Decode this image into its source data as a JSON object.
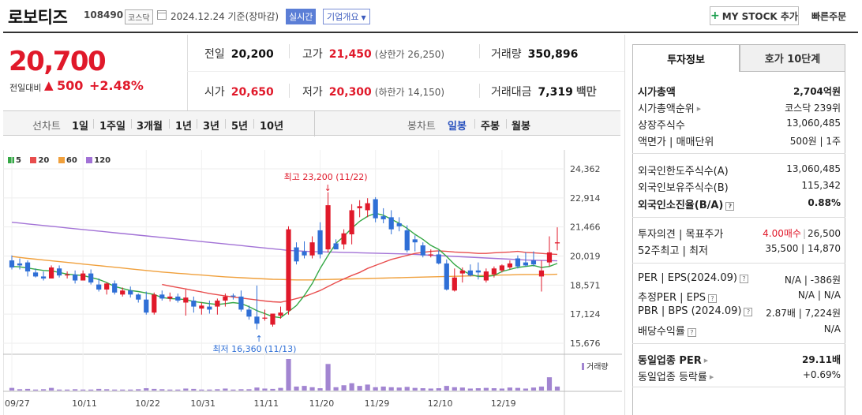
{
  "header": {
    "name": "로보티즈",
    "code": "108490",
    "market": "코스닥",
    "date": "2024.12.24  기준(장마감)",
    "realtime": "실시간",
    "company_info": "기업개요",
    "mystock": "MY STOCK 추가",
    "quick_order": "빠른주문"
  },
  "quote": {
    "price": "20,700",
    "change_label": "전일대비",
    "change": "500",
    "change_pct": "+2.48%",
    "prev_close_label": "전일",
    "prev_close": "20,200",
    "high_label": "고가",
    "high": "21,450",
    "upper_limit": "(상한가 26,250)",
    "volume_label": "거래량",
    "volume": "350,896",
    "open_label": "시가",
    "open": "20,650",
    "low_label": "저가",
    "low": "20,300",
    "lower_limit": "(하한가 14,150)",
    "amount_label": "거래대금",
    "amount": "7,319",
    "amount_unit": "백만"
  },
  "tabs": {
    "line_label": "선차트",
    "line_periods": [
      "1일",
      "1주일",
      "3개월",
      "1년",
      "3년",
      "5년",
      "10년"
    ],
    "candle_label": "봉차트",
    "candle_periods": [
      "일봉",
      "주봉",
      "월봉"
    ],
    "selected": "일봉"
  },
  "chart_data": {
    "type": "candlestick",
    "legend": [
      "5",
      "20",
      "60",
      "120"
    ],
    "colors": {
      "ma5": "#35a845",
      "ma20": "#e84d4d",
      "ma60": "#f0a03c",
      "ma120": "#a272d6",
      "up": "#e0192a",
      "down": "#2f6fd6",
      "volume": "#a285d1"
    },
    "y_ticks": [
      "24,362",
      "22,914",
      "21,466",
      "20,019",
      "18,571",
      "17,124",
      "15,676"
    ],
    "ylim": [
      15676,
      24362
    ],
    "x_ticks": [
      "09/27",
      "10/11",
      "10/22",
      "10/31",
      "11/11",
      "11/20",
      "11/29",
      "12/10",
      "12/19"
    ],
    "max_annotation": "최고 23,200 (11/22)",
    "min_annotation": "최저 16,360 (11/13)",
    "volume_label": "거래량",
    "candles": [
      {
        "o": 19800,
        "h": 20050,
        "l": 19350,
        "c": 19450
      },
      {
        "o": 19650,
        "h": 19900,
        "l": 19350,
        "c": 19550
      },
      {
        "o": 19700,
        "h": 19800,
        "l": 19000,
        "c": 19250
      },
      {
        "o": 19200,
        "h": 19400,
        "l": 18950,
        "c": 19000
      },
      {
        "o": 19000,
        "h": 19250,
        "l": 18800,
        "c": 18900
      },
      {
        "o": 18900,
        "h": 19550,
        "l": 18900,
        "c": 19450
      },
      {
        "o": 19400,
        "h": 19550,
        "l": 18950,
        "c": 19050
      },
      {
        "o": 19050,
        "h": 19250,
        "l": 18900,
        "c": 19100
      },
      {
        "o": 19100,
        "h": 19300,
        "l": 18650,
        "c": 18800
      },
      {
        "o": 18800,
        "h": 19300,
        "l": 18800,
        "c": 19150
      },
      {
        "o": 19150,
        "h": 19350,
        "l": 18600,
        "c": 18700
      },
      {
        "o": 18600,
        "h": 18900,
        "l": 18250,
        "c": 18350
      },
      {
        "o": 18350,
        "h": 18700,
        "l": 18100,
        "c": 18650
      },
      {
        "o": 18650,
        "h": 18800,
        "l": 18100,
        "c": 18200
      },
      {
        "o": 18100,
        "h": 18450,
        "l": 18000,
        "c": 18300
      },
      {
        "o": 18300,
        "h": 18500,
        "l": 17950,
        "c": 18100
      },
      {
        "o": 18100,
        "h": 18150,
        "l": 17700,
        "c": 17850
      },
      {
        "o": 17850,
        "h": 18250,
        "l": 17100,
        "c": 17200
      },
      {
        "o": 17200,
        "h": 18200,
        "l": 17100,
        "c": 18100
      },
      {
        "o": 18100,
        "h": 18300,
        "l": 17800,
        "c": 17900
      },
      {
        "o": 17900,
        "h": 18200,
        "l": 17750,
        "c": 18000
      },
      {
        "o": 18000,
        "h": 18150,
        "l": 17700,
        "c": 17800
      },
      {
        "o": 17700,
        "h": 18350,
        "l": 17050,
        "c": 17950
      },
      {
        "o": 17800,
        "h": 18000,
        "l": 17200,
        "c": 17500
      },
      {
        "o": 17400,
        "h": 17700,
        "l": 17100,
        "c": 17550
      },
      {
        "o": 17500,
        "h": 17800,
        "l": 17150,
        "c": 17350
      },
      {
        "o": 17500,
        "h": 17900,
        "l": 17100,
        "c": 17800
      },
      {
        "o": 17800,
        "h": 18150,
        "l": 17500,
        "c": 18000
      },
      {
        "o": 18050,
        "h": 18150,
        "l": 17850,
        "c": 18000
      },
      {
        "o": 18000,
        "h": 18300,
        "l": 17250,
        "c": 17350
      },
      {
        "o": 17350,
        "h": 17550,
        "l": 16850,
        "c": 17000
      },
      {
        "o": 17000,
        "h": 18550,
        "l": 16360,
        "c": 16650
      },
      {
        "o": 16900,
        "h": 17350,
        "l": 16800,
        "c": 16950
      },
      {
        "o": 16600,
        "h": 17150,
        "l": 16500,
        "c": 17150
      },
      {
        "o": 17050,
        "h": 17500,
        "l": 16900,
        "c": 17200
      },
      {
        "o": 17300,
        "h": 21500,
        "l": 17100,
        "c": 21350
      },
      {
        "o": 20450,
        "h": 20700,
        "l": 19600,
        "c": 19750
      },
      {
        "o": 20250,
        "h": 20750,
        "l": 19900,
        "c": 20050
      },
      {
        "o": 20050,
        "h": 21000,
        "l": 19900,
        "c": 20700
      },
      {
        "o": 21300,
        "h": 21700,
        "l": 19900,
        "c": 20100
      },
      {
        "o": 20350,
        "h": 23200,
        "l": 20200,
        "c": 22550
      },
      {
        "o": 20650,
        "h": 20850,
        "l": 20350,
        "c": 20350
      },
      {
        "o": 20600,
        "h": 21350,
        "l": 20350,
        "c": 21150
      },
      {
        "o": 21100,
        "h": 22600,
        "l": 20600,
        "c": 22300
      },
      {
        "o": 22400,
        "h": 22800,
        "l": 21950,
        "c": 22500
      },
      {
        "o": 22300,
        "h": 22900,
        "l": 21950,
        "c": 22650
      },
      {
        "o": 22850,
        "h": 22950,
        "l": 21700,
        "c": 21900
      },
      {
        "o": 22000,
        "h": 22400,
        "l": 21650,
        "c": 21850
      },
      {
        "o": 21950,
        "h": 22300,
        "l": 21100,
        "c": 21350
      },
      {
        "o": 21650,
        "h": 21950,
        "l": 21250,
        "c": 21500
      },
      {
        "o": 21300,
        "h": 21550,
        "l": 20200,
        "c": 20300
      },
      {
        "o": 20850,
        "h": 21050,
        "l": 20250,
        "c": 20700
      },
      {
        "o": 20550,
        "h": 20700,
        "l": 19950,
        "c": 20050
      },
      {
        "o": 20050,
        "h": 20350,
        "l": 19950,
        "c": 20100
      },
      {
        "o": 20100,
        "h": 20300,
        "l": 19600,
        "c": 19650
      },
      {
        "o": 19650,
        "h": 19850,
        "l": 18300,
        "c": 18350
      },
      {
        "o": 18300,
        "h": 19400,
        "l": 18250,
        "c": 18950
      },
      {
        "o": 19150,
        "h": 19450,
        "l": 18700,
        "c": 19300
      },
      {
        "o": 19300,
        "h": 19600,
        "l": 19000,
        "c": 19050
      },
      {
        "o": 19300,
        "h": 19700,
        "l": 18850,
        "c": 19200
      },
      {
        "o": 18800,
        "h": 19400,
        "l": 18700,
        "c": 19250
      },
      {
        "o": 19100,
        "h": 19500,
        "l": 18950,
        "c": 19400
      },
      {
        "o": 19300,
        "h": 19600,
        "l": 19200,
        "c": 19550
      },
      {
        "o": 19450,
        "h": 19800,
        "l": 19350,
        "c": 19650
      },
      {
        "o": 19900,
        "h": 20050,
        "l": 19400,
        "c": 19500
      },
      {
        "o": 19700,
        "h": 20200,
        "l": 19500,
        "c": 19550
      },
      {
        "o": 19800,
        "h": 20250,
        "l": 19500,
        "c": 19600
      },
      {
        "o": 19000,
        "h": 19800,
        "l": 18250,
        "c": 19300
      },
      {
        "o": 19700,
        "h": 21000,
        "l": 19500,
        "c": 20200
      },
      {
        "o": 20650,
        "h": 21450,
        "l": 20300,
        "c": 20700
      }
    ],
    "ma5": [
      19500,
      19480,
      19420,
      19360,
      19300,
      19280,
      19200,
      19120,
      19080,
      19050,
      18950,
      18850,
      18700,
      18500,
      18400,
      18300,
      18250,
      18180,
      18100,
      17950,
      17900,
      17880,
      17850,
      17750,
      17700,
      17650,
      17600,
      17650,
      17700,
      17650,
      17500,
      17300,
      17150,
      17000,
      16950,
      17250,
      17550,
      18050,
      18650,
      19400,
      20050,
      20650,
      21000,
      21400,
      21750,
      22000,
      22150,
      22050,
      21850,
      21650,
      21400,
      21100,
      20850,
      20550,
      20350,
      20000,
      19600,
      19300,
      19100,
      19000,
      19000,
      19050,
      19250,
      19350,
      19450,
      19500,
      19550,
      19450,
      19500,
      19650
    ],
    "ma20": [
      null,
      null,
      null,
      null,
      null,
      null,
      null,
      null,
      null,
      null,
      null,
      null,
      null,
      null,
      null,
      null,
      null,
      null,
      null,
      18600,
      18520,
      18450,
      18380,
      18300,
      18230,
      18150,
      18090,
      18030,
      17980,
      17930,
      17880,
      17830,
      17780,
      17740,
      17720,
      17800,
      17900,
      18000,
      18150,
      18300,
      18500,
      18700,
      18880,
      19050,
      19200,
      19400,
      19550,
      19700,
      19850,
      19950,
      20050,
      20150,
      20200,
      20250,
      20280,
      20250,
      20220,
      20200,
      20180,
      20150,
      20150,
      20180,
      20200,
      20220,
      20250,
      20200,
      20180,
      20150,
      20120,
      20100
    ],
    "ma60": [
      20000,
      19950,
      19900,
      19860,
      19820,
      19780,
      19740,
      19700,
      19660,
      19620,
      19580,
      19540,
      19500,
      19460,
      19420,
      19380,
      19340,
      19300,
      19260,
      19220,
      19190,
      19160,
      19130,
      19100,
      19070,
      19040,
      19010,
      18980,
      18960,
      18940,
      18920,
      18900,
      18880,
      18860,
      18850,
      18840,
      18830,
      18830,
      18830,
      18840,
      18850,
      18860,
      18870,
      18880,
      18890,
      18900,
      18910,
      18920,
      18930,
      18940,
      18950,
      18960,
      18970,
      18980,
      18990,
      19000,
      19010,
      19020,
      19030,
      19040,
      19050,
      19060,
      19070,
      19080,
      19090,
      19100,
      19100,
      19100,
      19100,
      19110
    ],
    "ma120": [
      21700,
      21660,
      21620,
      21580,
      21540,
      21500,
      21460,
      21420,
      21380,
      21340,
      21300,
      21260,
      21220,
      21180,
      21140,
      21100,
      21060,
      21020,
      20980,
      20940,
      20900,
      20860,
      20820,
      20780,
      20740,
      20700,
      20660,
      20620,
      20580,
      20540,
      20500,
      20460,
      20420,
      20380,
      20340,
      20300,
      20280,
      20260,
      20240,
      20230,
      20220,
      20210,
      20200,
      20190,
      20180,
      20170,
      20160,
      20150,
      20140,
      20130,
      20120,
      20100,
      20080,
      20060,
      20040,
      20020,
      20000,
      19980,
      19960,
      19940,
      19920,
      19900,
      19880,
      19860,
      19840,
      19820,
      19810,
      19800,
      19790,
      19780
    ],
    "volumes": [
      8,
      4,
      5,
      3,
      4,
      8,
      3,
      3,
      4,
      3,
      3,
      5,
      4,
      3,
      3,
      3,
      4,
      7,
      5,
      4,
      3,
      3,
      6,
      5,
      3,
      3,
      4,
      6,
      3,
      4,
      4,
      9,
      6,
      5,
      8,
      95,
      12,
      14,
      10,
      7,
      80,
      10,
      16,
      22,
      14,
      18,
      10,
      12,
      10,
      9,
      11,
      8,
      7,
      6,
      7,
      14,
      10,
      9,
      6,
      7,
      8,
      7,
      6,
      9,
      8,
      6,
      9,
      12,
      40,
      12
    ]
  },
  "right_panel": {
    "tab_active": "투자정보",
    "tab_inactive": "호가 10단계",
    "rows": [
      {
        "k": "시가총액",
        "v": "2,704억원",
        "bold": true
      },
      {
        "k": "시가총액순위",
        "v": "코스닥 239위"
      },
      {
        "k": "상장주식수",
        "v": "13,060,485"
      },
      {
        "k": "액면가 | 매매단위",
        "v": "500원 | 1주"
      },
      {
        "k": "외국인한도주식수(A)",
        "v": "13,060,485"
      },
      {
        "k": "외국인보유주식수(B)",
        "v": "115,342"
      },
      {
        "k": "외국인소진율(B/A)",
        "v": "0.88%",
        "bold": true
      },
      {
        "k": "투자의견 | 목표주가",
        "v1": "4.00매수",
        "v2": "26,500"
      },
      {
        "k": "52주최고 | 최저",
        "v": "35,500 | 14,870"
      },
      {
        "k": "PER | EPS(2024.09)",
        "v": "N/A | -386원"
      },
      {
        "k": "추정PER | EPS",
        "v": "N/A | N/A"
      },
      {
        "k": "PBR | BPS (2024.09)",
        "v": "2.87배 | 7,224원"
      },
      {
        "k": "배당수익률",
        "v": "N/A"
      },
      {
        "k": "동일업종 PER",
        "v": "29.11배",
        "bold": true
      },
      {
        "k": "동일업종 등락률",
        "v": "+0.69%"
      }
    ]
  }
}
